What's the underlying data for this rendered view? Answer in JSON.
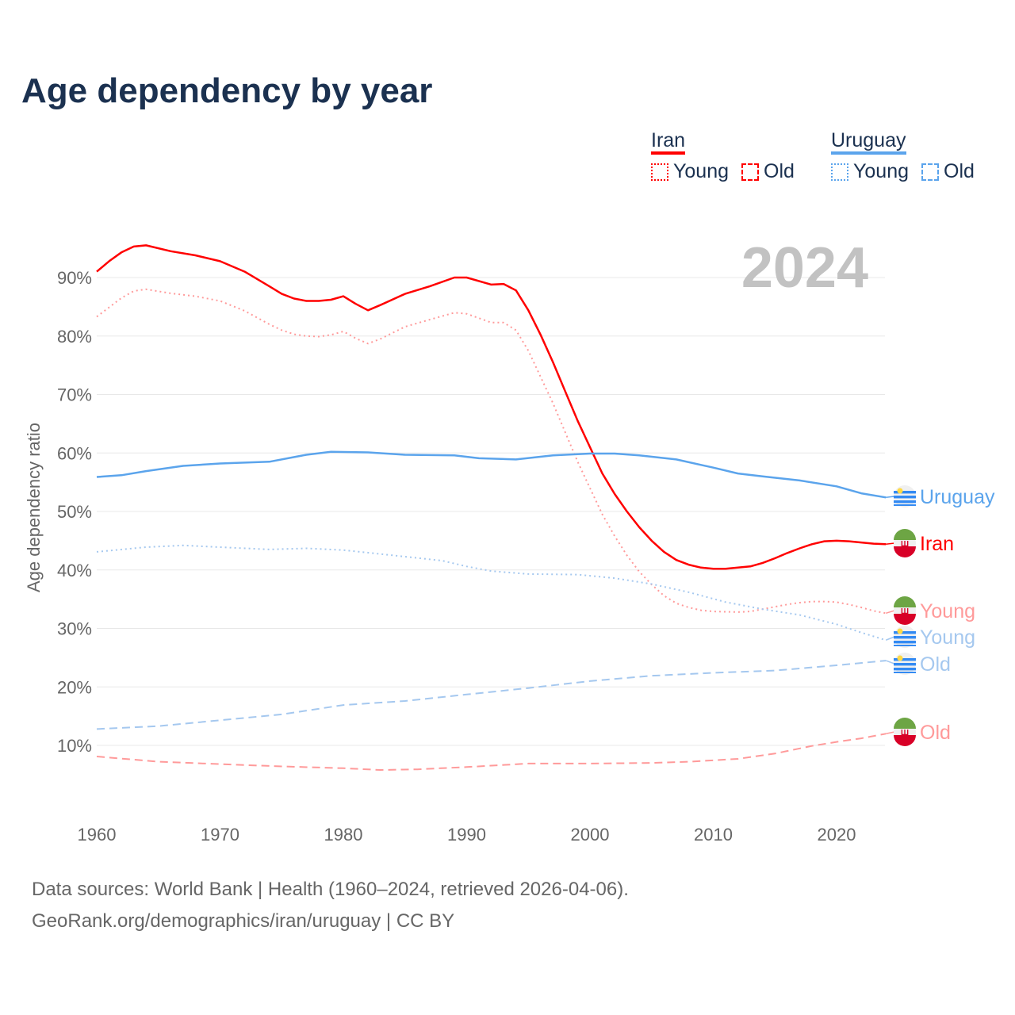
{
  "chart_data": {
    "type": "line",
    "title": "Age dependency by year",
    "year_label": "2024",
    "ylabel": "Age dependency ratio",
    "xlim": [
      1960,
      2024
    ],
    "ylim": [
      0,
      95
    ],
    "xticks": [
      1960,
      1970,
      1980,
      1990,
      2000,
      2010,
      2020
    ],
    "yticks": [
      10,
      20,
      30,
      40,
      50,
      60,
      70,
      80,
      90
    ],
    "ytick_labels": [
      "10%",
      "20%",
      "30%",
      "40%",
      "50%",
      "60%",
      "70%",
      "80%",
      "90%"
    ],
    "legend": {
      "groups": [
        {
          "name": "Iran",
          "color": "#ff0000",
          "items": [
            "Young",
            "Old"
          ]
        },
        {
          "name": "Uruguay",
          "color": "#5ba4ec",
          "items": [
            "Young",
            "Old"
          ]
        }
      ],
      "placement": "top-right"
    },
    "series": [
      {
        "id": "iran",
        "name": "Iran",
        "label": "Iran",
        "color": "#ff0000",
        "style": "solid",
        "points": [
          [
            1960,
            91
          ],
          [
            1961,
            92.8
          ],
          [
            1962,
            94.3
          ],
          [
            1963,
            95.3
          ],
          [
            1964,
            95.5
          ],
          [
            1966,
            94.5
          ],
          [
            1968,
            93.8
          ],
          [
            1970,
            92.8
          ],
          [
            1972,
            91
          ],
          [
            1974,
            88.5
          ],
          [
            1975,
            87.2
          ],
          [
            1976,
            86.4
          ],
          [
            1977,
            86
          ],
          [
            1978,
            86
          ],
          [
            1979,
            86.2
          ],
          [
            1980,
            86.8
          ],
          [
            1981,
            85.5
          ],
          [
            1982,
            84.4
          ],
          [
            1983,
            85.3
          ],
          [
            1985,
            87.2
          ],
          [
            1987,
            88.5
          ],
          [
            1989,
            90
          ],
          [
            1990,
            90
          ],
          [
            1992,
            88.8
          ],
          [
            1993,
            88.9
          ],
          [
            1994,
            87.8
          ],
          [
            1995,
            84.4
          ],
          [
            1996,
            80.2
          ],
          [
            1997,
            75.5
          ],
          [
            1998,
            70.5
          ],
          [
            1999,
            65.5
          ],
          [
            2000,
            61
          ],
          [
            2001,
            56.5
          ],
          [
            2002,
            53
          ],
          [
            2003,
            50
          ],
          [
            2004,
            47.3
          ],
          [
            2005,
            45
          ],
          [
            2006,
            43.1
          ],
          [
            2007,
            41.7
          ],
          [
            2008,
            40.9
          ],
          [
            2009,
            40.4
          ],
          [
            2010,
            40.2
          ],
          [
            2011,
            40.2
          ],
          [
            2012,
            40.4
          ],
          [
            2013,
            40.6
          ],
          [
            2014,
            41.2
          ],
          [
            2015,
            42
          ],
          [
            2016,
            42.9
          ],
          [
            2017,
            43.7
          ],
          [
            2018,
            44.4
          ],
          [
            2019,
            44.9
          ],
          [
            2020,
            45
          ],
          [
            2021,
            44.9
          ],
          [
            2022,
            44.7
          ],
          [
            2023,
            44.5
          ],
          [
            2024,
            44.4
          ]
        ]
      },
      {
        "id": "iran-young",
        "name": "Iran Young",
        "label": "Young",
        "color": "#ff9a9a",
        "style": "dotted",
        "points": [
          [
            1960,
            83.3
          ],
          [
            1962,
            86.5
          ],
          [
            1963,
            87.7
          ],
          [
            1964,
            88
          ],
          [
            1966,
            87.3
          ],
          [
            1968,
            86.8
          ],
          [
            1970,
            86
          ],
          [
            1972,
            84.3
          ],
          [
            1974,
            82
          ],
          [
            1975,
            81
          ],
          [
            1976,
            80.3
          ],
          [
            1977,
            80
          ],
          [
            1978,
            79.9
          ],
          [
            1979,
            80.2
          ],
          [
            1980,
            80.8
          ],
          [
            1981,
            79.6
          ],
          [
            1982,
            78.7
          ],
          [
            1983,
            79.5
          ],
          [
            1985,
            81.6
          ],
          [
            1987,
            82.8
          ],
          [
            1989,
            84
          ],
          [
            1990,
            83.8
          ],
          [
            1992,
            82.3
          ],
          [
            1993,
            82.3
          ],
          [
            1994,
            81
          ],
          [
            1995,
            77.5
          ],
          [
            1996,
            73
          ],
          [
            1997,
            68.5
          ],
          [
            1998,
            63.5
          ],
          [
            1999,
            58.5
          ],
          [
            2000,
            54
          ],
          [
            2001,
            49.5
          ],
          [
            2002,
            45.8
          ],
          [
            2003,
            42.5
          ],
          [
            2004,
            39.7
          ],
          [
            2005,
            37.5
          ],
          [
            2006,
            35.6
          ],
          [
            2007,
            34.3
          ],
          [
            2008,
            33.6
          ],
          [
            2009,
            33.1
          ],
          [
            2010,
            32.9
          ],
          [
            2012,
            32.8
          ],
          [
            2013,
            32.9
          ],
          [
            2014,
            33.3
          ],
          [
            2015,
            33.7
          ],
          [
            2016,
            34.1
          ],
          [
            2017,
            34.4
          ],
          [
            2018,
            34.6
          ],
          [
            2019,
            34.6
          ],
          [
            2020,
            34.5
          ],
          [
            2021,
            34.1
          ],
          [
            2022,
            33.6
          ],
          [
            2023,
            33
          ],
          [
            2024,
            32.6
          ]
        ]
      },
      {
        "id": "iran-old",
        "name": "Iran Old",
        "label": "Old",
        "color": "#ff9a9a",
        "style": "dashed",
        "points": [
          [
            1960,
            8.1
          ],
          [
            1965,
            7.2
          ],
          [
            1970,
            6.8
          ],
          [
            1975,
            6.4
          ],
          [
            1980,
            6.1
          ],
          [
            1983,
            5.8
          ],
          [
            1986,
            5.9
          ],
          [
            1990,
            6.3
          ],
          [
            1995,
            6.9
          ],
          [
            2000,
            6.9
          ],
          [
            2005,
            7
          ],
          [
            2008,
            7.2
          ],
          [
            2012,
            7.7
          ],
          [
            2015,
            8.6
          ],
          [
            2018,
            9.9
          ],
          [
            2020,
            10.6
          ],
          [
            2022,
            11.2
          ],
          [
            2024,
            12
          ]
        ]
      },
      {
        "id": "uruguay",
        "name": "Uruguay",
        "label": "Uruguay",
        "color": "#5ba4ec",
        "style": "solid",
        "points": [
          [
            1960,
            55.9
          ],
          [
            1962,
            56.2
          ],
          [
            1964,
            56.9
          ],
          [
            1967,
            57.8
          ],
          [
            1970,
            58.2
          ],
          [
            1974,
            58.5
          ],
          [
            1977,
            59.7
          ],
          [
            1979,
            60.2
          ],
          [
            1982,
            60.1
          ],
          [
            1985,
            59.7
          ],
          [
            1989,
            59.6
          ],
          [
            1991,
            59.1
          ],
          [
            1994,
            58.9
          ],
          [
            1997,
            59.6
          ],
          [
            2000,
            59.9
          ],
          [
            2002,
            59.9
          ],
          [
            2004,
            59.6
          ],
          [
            2007,
            58.9
          ],
          [
            2010,
            57.5
          ],
          [
            2012,
            56.5
          ],
          [
            2014,
            56
          ],
          [
            2017,
            55.3
          ],
          [
            2020,
            54.3
          ],
          [
            2022,
            53.1
          ],
          [
            2024,
            52.4
          ]
        ]
      },
      {
        "id": "uruguay-young",
        "name": "Uruguay Young",
        "label": "Young",
        "color": "#a5c8ef",
        "style": "dotted",
        "points": [
          [
            1960,
            43.1
          ],
          [
            1964,
            43.9
          ],
          [
            1967,
            44.2
          ],
          [
            1970,
            43.9
          ],
          [
            1974,
            43.5
          ],
          [
            1977,
            43.7
          ],
          [
            1980,
            43.4
          ],
          [
            1984,
            42.5
          ],
          [
            1988,
            41.6
          ],
          [
            1990,
            40.6
          ],
          [
            1992,
            39.8
          ],
          [
            1995,
            39.3
          ],
          [
            1999,
            39.2
          ],
          [
            2002,
            38.6
          ],
          [
            2005,
            37.6
          ],
          [
            2008,
            36.2
          ],
          [
            2011,
            34.5
          ],
          [
            2014,
            33.3
          ],
          [
            2017,
            32.3
          ],
          [
            2020,
            30.7
          ],
          [
            2022,
            29.3
          ],
          [
            2024,
            28
          ]
        ]
      },
      {
        "id": "uruguay-old",
        "name": "Uruguay Old",
        "label": "Old",
        "color": "#a5c8ef",
        "style": "dashed",
        "points": [
          [
            1960,
            12.8
          ],
          [
            1965,
            13.3
          ],
          [
            1970,
            14.3
          ],
          [
            1975,
            15.3
          ],
          [
            1980,
            16.9
          ],
          [
            1985,
            17.6
          ],
          [
            1990,
            18.7
          ],
          [
            1995,
            19.8
          ],
          [
            2000,
            21
          ],
          [
            2005,
            21.9
          ],
          [
            2010,
            22.4
          ],
          [
            2015,
            22.8
          ],
          [
            2020,
            23.7
          ],
          [
            2024,
            24.5
          ]
        ]
      }
    ]
  },
  "source": {
    "line1": "Data sources: World Bank | Health (1960–2024, retrieved 2026-04-06).",
    "line2": "GeoRank.org/demographics/iran/uruguay | CC BY"
  }
}
